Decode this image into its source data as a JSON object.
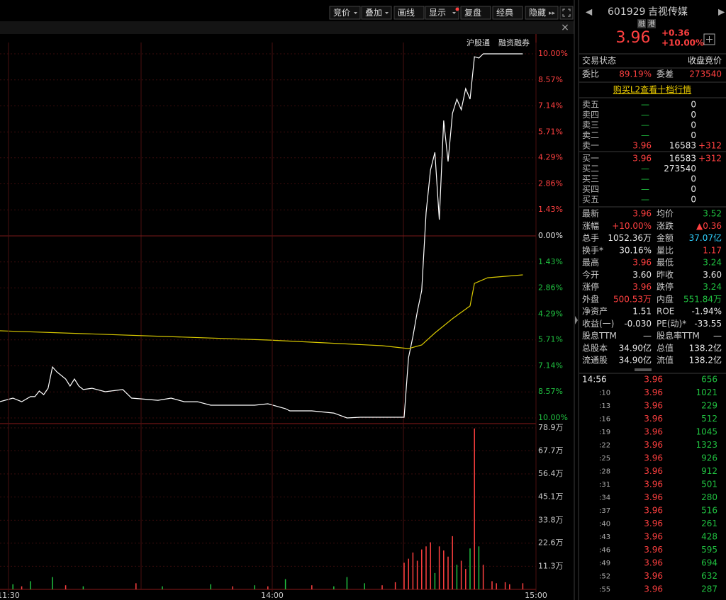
{
  "toolbar": {
    "buttons": [
      "竞价",
      "叠加",
      "画线",
      "显示",
      "复盘",
      "经典",
      "隐藏"
    ]
  },
  "chart_data": [
    {
      "type": "line",
      "annotations": [
        "沪股通",
        "融资融券"
      ],
      "ylim": [
        -10,
        10
      ],
      "yticks": [
        {
          "value": 10,
          "label": "10.00%"
        },
        {
          "value": 8.57,
          "label": "8.57%"
        },
        {
          "value": 7.14,
          "label": "7.14%"
        },
        {
          "value": 5.71,
          "label": "5.71%"
        },
        {
          "value": 4.29,
          "label": "4.29%"
        },
        {
          "value": 2.86,
          "label": "2.86%"
        },
        {
          "value": 1.43,
          "label": "1.43%"
        },
        {
          "value": 0,
          "label": "0.00%"
        },
        {
          "value": -1.43,
          "label": "1.43%"
        },
        {
          "value": -2.86,
          "label": "2.86%"
        },
        {
          "value": -4.29,
          "label": "4.29%"
        },
        {
          "value": -5.71,
          "label": "5.71%"
        },
        {
          "value": -7.14,
          "label": "7.14%"
        },
        {
          "value": -8.57,
          "label": "8.57%"
        },
        {
          "value": -10,
          "label": "10.00%"
        }
      ],
      "series": [
        {
          "color": "#ffffff",
          "x": [
            "11:28",
            "13:01",
            "13:03",
            "13:05",
            "13:06",
            "13:07",
            "13:08",
            "13:09",
            "13:10",
            "13:11",
            "13:13",
            "13:14",
            "13:15",
            "13:16",
            "13:17",
            "13:19",
            "13:22",
            "13:26",
            "13:28",
            "13:30",
            "13:34",
            "13:37",
            "13:40",
            "13:43",
            "13:46",
            "13:50",
            "13:53",
            "13:56",
            "13:59",
            "14:03",
            "14:04",
            "14:09",
            "14:14",
            "14:17",
            "14:20",
            "14:25",
            "14:30",
            "14:31",
            "14:32",
            "14:33",
            "14:34",
            "14:35",
            "14:36",
            "14:37",
            "14:38",
            "14:39",
            "14:40",
            "14:41",
            "14:42",
            "14:43",
            "14:44",
            "14:45",
            "14:46",
            "14:47",
            "14:48",
            "14:51",
            "14:57"
          ],
          "values": [
            -9.11,
            -8.91,
            -9.11,
            -8.83,
            -8.83,
            -8.52,
            -8.72,
            -8.37,
            -7.2,
            -7.47,
            -7.86,
            -8.25,
            -7.86,
            -8.25,
            -8.44,
            -8.37,
            -8.56,
            -8.44,
            -8.91,
            -8.95,
            -9.03,
            -8.91,
            -9.11,
            -9.11,
            -9.3,
            -9.3,
            -9.3,
            -9.3,
            -9.22,
            -9.49,
            -9.61,
            -9.61,
            -9.73,
            -10,
            -9.96,
            -9.96,
            -9.96,
            -6.69,
            -5.53,
            -4.16,
            -3,
            1.28,
            3.62,
            4.59,
            0.89,
            6.34,
            4.09,
            6.73,
            7.51,
            6.93,
            8.09,
            7.51,
            9.84,
            9.77,
            10,
            10,
            10
          ]
        },
        {
          "color": "#d8c800",
          "x": [
            "11:28",
            "13:59",
            "14:25",
            "14:31",
            "14:34",
            "14:37",
            "14:41",
            "14:45",
            "14:46",
            "14:49",
            "14:57"
          ],
          "values": [
            -5.21,
            -5.72,
            -6.03,
            -6.19,
            -5.99,
            -5.33,
            -4.55,
            -3.85,
            -2.61,
            -2.3,
            -2.14
          ]
        }
      ]
    },
    {
      "type": "bar",
      "ylim": [
        0,
        78.9
      ],
      "yticks": [
        {
          "value": 78.9,
          "label": "78.9万"
        },
        {
          "value": 67.7,
          "label": "67.7万"
        },
        {
          "value": 56.4,
          "label": "56.4万"
        },
        {
          "value": 45.1,
          "label": "45.1万"
        },
        {
          "value": 33.8,
          "label": "33.8万"
        },
        {
          "value": 22.6,
          "label": "22.6万"
        },
        {
          "value": 11.3,
          "label": "11.3万"
        }
      ],
      "xticks": [
        "11:30",
        "14:00",
        "15:00"
      ],
      "x": [
        "13:01",
        "13:03",
        "13:05",
        "13:10",
        "13:13",
        "13:17",
        "13:29",
        "13:35",
        "13:46",
        "13:51",
        "13:56",
        "13:59",
        "14:03",
        "14:09",
        "14:14",
        "14:17",
        "14:21",
        "14:25",
        "14:28",
        "14:30",
        "14:31",
        "14:32",
        "14:33",
        "14:34",
        "14:35",
        "14:36",
        "14:37",
        "14:38",
        "14:39",
        "14:40",
        "14:41",
        "14:42",
        "14:43",
        "14:44",
        "14:45",
        "14:46",
        "14:47",
        "14:48",
        "14:50",
        "14:51",
        "14:53",
        "14:54",
        "14:57"
      ],
      "values": [
        2.5,
        1.5,
        4,
        6,
        2,
        1.5,
        3,
        1.5,
        2.5,
        1.5,
        2,
        1.5,
        5,
        2,
        1.5,
        6,
        3,
        2,
        3.5,
        13,
        15,
        18,
        14,
        19.5,
        21,
        23,
        8,
        21,
        19,
        16,
        26,
        12,
        14,
        10,
        20,
        78.6,
        21,
        12,
        4,
        3,
        3.5,
        2.5,
        3
      ],
      "colors": [
        "#20c040",
        "#ff4040",
        "#20c040",
        "#20c040",
        "#ff4040",
        "#20c040",
        "#ff4040",
        "#20c040",
        "#20c040",
        "#ff4040",
        "#20c040",
        "#ff4040",
        "#20c040",
        "#ff4040",
        "#20c040",
        "#20c040",
        "#20c040",
        "#ff4040",
        "#ff4040",
        "#ff4040",
        "#ff4040",
        "#ff4040",
        "#ff4040",
        "#ff4040",
        "#ff4040",
        "#ff4040",
        "#20c040",
        "#ff4040",
        "#ff4040",
        "#ff4040",
        "#ff4040",
        "#20c040",
        "#ff4040",
        "#ff4040",
        "#20c040",
        "#ff4040",
        "#20c040",
        "#ff4040",
        "#ff4040",
        "#ff4040",
        "#ff4040",
        "#ff4040",
        "#ff4040"
      ]
    }
  ],
  "quote": {
    "code": "601929",
    "name": "吉视传媒",
    "tags": [
      "融",
      "港"
    ],
    "price": "3.96",
    "change": "+0.36",
    "change_pct": "+10.00%",
    "status": [
      "交易状态",
      "收盘竞价"
    ],
    "order_ratio": [
      "委比",
      "89.19%",
      "委差",
      "273540"
    ],
    "l2_link": "购买L2查看十档行情",
    "asks": [
      [
        "卖五",
        "—",
        "0"
      ],
      [
        "卖四",
        "—",
        "0"
      ],
      [
        "卖三",
        "—",
        "0"
      ],
      [
        "卖二",
        "—",
        "0"
      ],
      [
        "卖一",
        "3.96",
        "16583",
        "+312"
      ]
    ],
    "bids": [
      [
        "买一",
        "3.96",
        "16583",
        "+312"
      ],
      [
        "买二",
        "—",
        "273540"
      ],
      [
        "买三",
        "—",
        "0"
      ],
      [
        "买四",
        "—",
        "0"
      ],
      [
        "买五",
        "—",
        "0"
      ]
    ],
    "stats": [
      [
        "最新",
        "3.96",
        "均价",
        "3.52"
      ],
      [
        "涨幅",
        "+10.00%",
        "涨跌",
        "▲0.36"
      ],
      [
        "总手",
        "1052.36万",
        "金额",
        "37.07亿"
      ],
      [
        "换手*",
        "30.16%",
        "量比",
        "1.17"
      ],
      [
        "最高",
        "3.96",
        "最低",
        "3.24"
      ],
      [
        "今开",
        "3.60",
        "昨收",
        "3.60"
      ],
      [
        "涨停",
        "3.96",
        "跌停",
        "3.24"
      ],
      [
        "外盘",
        "500.53万",
        "内盘",
        "551.84万"
      ],
      [
        "净资产",
        "1.51",
        "ROE",
        "-1.94%"
      ],
      [
        "收益(一)",
        "-0.030",
        "PE(动)*",
        "-33.55"
      ],
      [
        "股息TTM",
        "—",
        "股息率TTM",
        "—"
      ],
      [
        "总股本",
        "34.90亿",
        "总值",
        "138.2亿"
      ],
      [
        "流通股",
        "34.90亿",
        "流值",
        "138.2亿"
      ]
    ],
    "ticks": [
      [
        "14:56",
        "3.96",
        "656"
      ],
      [
        ":10",
        "3.96",
        "1021"
      ],
      [
        ":13",
        "3.96",
        "229"
      ],
      [
        ":16",
        "3.96",
        "512"
      ],
      [
        ":19",
        "3.96",
        "1045"
      ],
      [
        ":22",
        "3.96",
        "1323"
      ],
      [
        ":25",
        "3.96",
        "926"
      ],
      [
        ":28",
        "3.96",
        "912"
      ],
      [
        ":31",
        "3.96",
        "501"
      ],
      [
        ":34",
        "3.96",
        "280"
      ],
      [
        ":37",
        "3.96",
        "516"
      ],
      [
        ":40",
        "3.96",
        "261"
      ],
      [
        ":43",
        "3.96",
        "428"
      ],
      [
        ":46",
        "3.96",
        "595"
      ],
      [
        ":49",
        "3.96",
        "694"
      ],
      [
        ":52",
        "3.96",
        "632"
      ],
      [
        ":55",
        "3.96",
        "287"
      ]
    ]
  }
}
